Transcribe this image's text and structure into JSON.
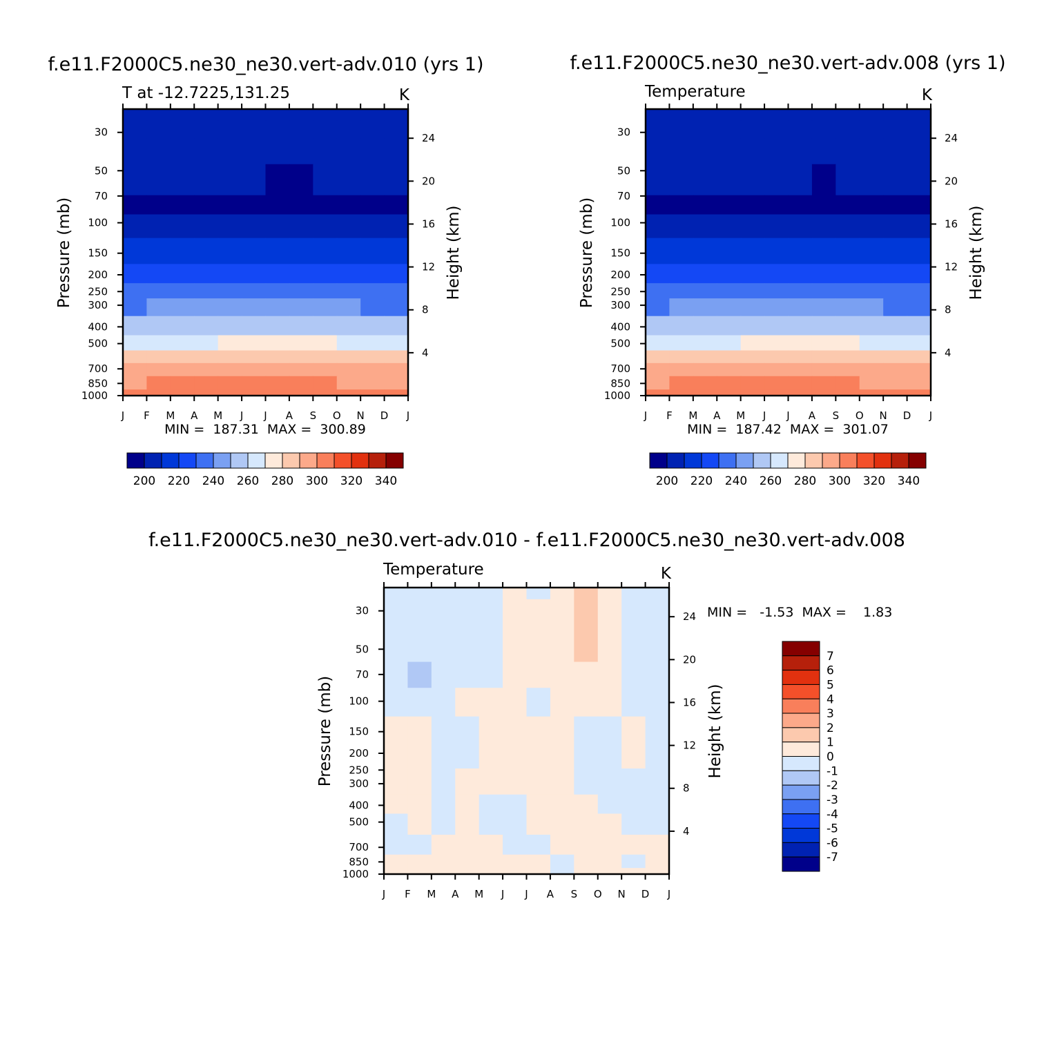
{
  "chart_data": [
    {
      "type": "heatmap",
      "title": "f.e11.F2000C5.ne30_ne30.vert-adv.010 (yrs 1)",
      "subtitle_left": "T at -12.7225,131.25",
      "units": "K",
      "xlabel": "",
      "ylabel": "Pressure (mb)",
      "ylabel_right": "Height (km)",
      "x_ticks": [
        "J",
        "F",
        "M",
        "A",
        "M",
        "J",
        "J",
        "A",
        "S",
        "O",
        "N",
        "D",
        "J"
      ],
      "y_ticks": [
        30,
        50,
        70,
        100,
        150,
        200,
        250,
        300,
        400,
        500,
        700,
        850,
        1000
      ],
      "y_ticks_right": [
        24,
        20,
        16,
        12,
        8,
        4
      ],
      "ylim": [
        1000,
        22
      ],
      "y_scale": "log",
      "x_months": [
        1,
        2,
        3,
        4,
        5,
        6,
        7,
        8,
        9,
        10,
        11,
        12
      ],
      "levels_p": [
        22,
        30,
        35,
        60,
        80,
        100,
        150,
        200,
        250,
        300,
        400,
        500,
        600,
        700,
        850,
        1000
      ],
      "values": [
        [
          190,
          190,
          190,
          190,
          190,
          190,
          190,
          190,
          190,
          190,
          190,
          190
        ],
        [
          192,
          193,
          193,
          192,
          191,
          190,
          190,
          190,
          190,
          191,
          192,
          192
        ],
        [
          196,
          197,
          197,
          195,
          193,
          192,
          191,
          191,
          192,
          194,
          196,
          196
        ],
        [
          192,
          193,
          193,
          193,
          192,
          191,
          189,
          189,
          190,
          191,
          192,
          192
        ],
        [
          188,
          188,
          188,
          188,
          188,
          188,
          188,
          188,
          188,
          188,
          188,
          188
        ],
        [
          193,
          192,
          192,
          193,
          193,
          194,
          194,
          194,
          193,
          193,
          192,
          193
        ],
        [
          206,
          206,
          206,
          207,
          207,
          208,
          208,
          208,
          207,
          207,
          206,
          206
        ],
        [
          216,
          216,
          216,
          217,
          217,
          218,
          218,
          218,
          217,
          216,
          215,
          216
        ],
        [
          224,
          225,
          225,
          226,
          226,
          227,
          227,
          227,
          226,
          225,
          224,
          224
        ],
        [
          229,
          230,
          230,
          231,
          231,
          232,
          232,
          232,
          231,
          230,
          229,
          229
        ],
        [
          246,
          247,
          247,
          248,
          248,
          249,
          249,
          249,
          248,
          247,
          246,
          246
        ],
        [
          258,
          259,
          259,
          259,
          260,
          260,
          260,
          261,
          260,
          259,
          259,
          258
        ],
        [
          270,
          271,
          271,
          271,
          272,
          272,
          272,
          273,
          272,
          271,
          271,
          270
        ],
        [
          281,
          282,
          282,
          283,
          283,
          284,
          284,
          284,
          283,
          282,
          282,
          281
        ],
        [
          289,
          290,
          290,
          291,
          291,
          292,
          292,
          291,
          290,
          289,
          289,
          289
        ],
        [
          296,
          297,
          297,
          298,
          298,
          299,
          299,
          298,
          297,
          296,
          296,
          296
        ]
      ],
      "min_label": "MIN =  187.31  MAX =  300.89",
      "colorbar": {
        "colors": [
          "#00008a",
          "#0022b2",
          "#0038d8",
          "#1448f5",
          "#3e70f2",
          "#7aa0f2",
          "#b0c8f5",
          "#d6e8fd",
          "#feeadb",
          "#fcc9ae",
          "#fca98a",
          "#f97f5b",
          "#f4502a",
          "#e2310f",
          "#b6200b",
          "#850000"
        ],
        "labels": [
          "200",
          "220",
          "240",
          "260",
          "280",
          "300",
          "320",
          "340"
        ],
        "levels": [
          190,
          200,
          210,
          220,
          230,
          240,
          250,
          260,
          270,
          280,
          290,
          300,
          310,
          320,
          330,
          340
        ]
      }
    },
    {
      "type": "heatmap",
      "title": "f.e11.F2000C5.ne30_ne30.vert-adv.008 (yrs 1)",
      "subtitle_left": "Temperature",
      "units": "K",
      "xlabel": "",
      "ylabel": "Pressure (mb)",
      "ylabel_right": "Height (km)",
      "x_ticks": [
        "J",
        "F",
        "M",
        "A",
        "M",
        "J",
        "J",
        "A",
        "S",
        "O",
        "N",
        "D",
        "J"
      ],
      "y_ticks": [
        30,
        50,
        70,
        100,
        150,
        200,
        250,
        300,
        400,
        500,
        700,
        850,
        1000
      ],
      "y_ticks_right": [
        24,
        20,
        16,
        12,
        8,
        4
      ],
      "ylim": [
        1000,
        22
      ],
      "y_scale": "log",
      "x_months": [
        1,
        2,
        3,
        4,
        5,
        6,
        7,
        8,
        9,
        10,
        11,
        12
      ],
      "levels_p": [
        22,
        30,
        35,
        60,
        80,
        100,
        150,
        200,
        250,
        300,
        400,
        500,
        600,
        700,
        850,
        1000
      ],
      "values": [
        [
          190,
          190,
          190,
          190,
          190,
          190,
          190,
          190,
          190,
          190,
          190,
          190
        ],
        [
          192,
          193,
          193,
          192,
          191,
          190,
          190,
          190,
          191,
          191,
          192,
          192
        ],
        [
          196,
          197,
          197,
          195,
          194,
          192,
          191,
          191,
          192,
          193,
          195,
          196
        ],
        [
          192,
          193,
          193,
          193,
          192,
          191,
          190,
          189,
          190,
          191,
          192,
          192
        ],
        [
          188,
          188,
          188,
          188,
          188,
          188,
          188,
          188,
          188,
          188,
          188,
          188
        ],
        [
          193,
          192,
          192,
          193,
          193,
          194,
          194,
          194,
          193,
          193,
          192,
          193
        ],
        [
          206,
          206,
          206,
          207,
          207,
          208,
          208,
          208,
          207,
          207,
          206,
          206
        ],
        [
          216,
          216,
          216,
          217,
          217,
          218,
          218,
          218,
          217,
          216,
          215,
          216
        ],
        [
          224,
          225,
          225,
          226,
          226,
          227,
          227,
          227,
          226,
          225,
          224,
          224
        ],
        [
          229,
          230,
          230,
          231,
          231,
          232,
          232,
          232,
          231,
          230,
          229,
          229
        ],
        [
          246,
          247,
          247,
          248,
          248,
          249,
          249,
          249,
          248,
          247,
          246,
          246
        ],
        [
          258,
          259,
          259,
          259,
          260,
          260,
          260,
          261,
          260,
          259,
          259,
          258
        ],
        [
          270,
          271,
          271,
          271,
          272,
          272,
          272,
          273,
          272,
          271,
          271,
          270
        ],
        [
          281,
          282,
          282,
          283,
          283,
          284,
          284,
          284,
          283,
          282,
          282,
          281
        ],
        [
          289,
          290,
          290,
          291,
          291,
          292,
          292,
          291,
          290,
          289,
          289,
          289
        ],
        [
          296,
          297,
          297,
          298,
          298,
          299,
          299,
          298,
          297,
          296,
          296,
          296
        ]
      ],
      "min_label": "MIN =  187.42  MAX =  301.07",
      "colorbar": {
        "colors": [
          "#00008a",
          "#0022b2",
          "#0038d8",
          "#1448f5",
          "#3e70f2",
          "#7aa0f2",
          "#b0c8f5",
          "#d6e8fd",
          "#feeadb",
          "#fcc9ae",
          "#fca98a",
          "#f97f5b",
          "#f4502a",
          "#e2310f",
          "#b6200b",
          "#850000"
        ],
        "labels": [
          "200",
          "220",
          "240",
          "260",
          "280",
          "300",
          "320",
          "340"
        ],
        "levels": [
          190,
          200,
          210,
          220,
          230,
          240,
          250,
          260,
          270,
          280,
          290,
          300,
          310,
          320,
          330,
          340
        ]
      }
    },
    {
      "type": "heatmap",
      "title": "f.e11.F2000C5.ne30_ne30.vert-adv.010 - f.e11.F2000C5.ne30_ne30.vert-adv.008",
      "subtitle_left": "Temperature",
      "units": "K",
      "xlabel": "",
      "ylabel": "Pressure (mb)",
      "ylabel_right": "Height (km)",
      "x_ticks": [
        "J",
        "F",
        "M",
        "A",
        "M",
        "J",
        "J",
        "A",
        "S",
        "O",
        "N",
        "D",
        "J"
      ],
      "y_ticks": [
        30,
        50,
        70,
        100,
        150,
        200,
        250,
        300,
        400,
        500,
        700,
        850,
        1000
      ],
      "y_ticks_right": [
        24,
        20,
        16,
        12,
        8,
        4
      ],
      "ylim": [
        1000,
        22
      ],
      "y_scale": "log",
      "x_months": [
        1,
        2,
        3,
        4,
        5,
        6,
        7,
        8,
        9,
        10,
        11,
        12
      ],
      "levels_p": [
        22,
        30,
        50,
        70,
        100,
        150,
        200,
        300,
        400,
        500,
        700,
        850,
        1000
      ],
      "values": [
        [
          -0.3,
          -0.3,
          -0.3,
          -0.2,
          -0.1,
          0.3,
          -0.2,
          0.5,
          1.2,
          0.3,
          -0.4,
          -0.2
        ],
        [
          -0.3,
          -0.3,
          -0.3,
          -0.2,
          -0.1,
          0.3,
          0.2,
          0.6,
          1.3,
          0.3,
          -0.7,
          -0.2
        ],
        [
          -0.3,
          -0.4,
          -0.3,
          -0.2,
          -0.1,
          0.2,
          0.3,
          0.5,
          1.1,
          0.2,
          -0.5,
          -0.1
        ],
        [
          -0.3,
          -1.2,
          -0.3,
          -0.2,
          -0.1,
          0.1,
          0.8,
          0.4,
          0.7,
          0.1,
          -0.3,
          -0.1
        ],
        [
          -0.2,
          -0.3,
          -0.2,
          0.4,
          0.6,
          0.3,
          -0.4,
          0.2,
          0.3,
          0.1,
          -0.1,
          -0.2
        ],
        [
          0.2,
          0.3,
          -0.2,
          -0.2,
          0.3,
          0.3,
          0.2,
          0.2,
          -0.2,
          -0.3,
          0.2,
          -0.1
        ],
        [
          0.3,
          0.3,
          -0.2,
          -0.2,
          0.3,
          0.4,
          0.3,
          0.1,
          -0.2,
          -0.3,
          0.2,
          -0.2
        ],
        [
          0.3,
          0.3,
          -0.2,
          0.2,
          0.3,
          0.3,
          0.3,
          0.2,
          -0.2,
          -0.3,
          -0.1,
          -0.2
        ],
        [
          0.3,
          0.3,
          -0.2,
          0.3,
          -0.1,
          -0.2,
          0.2,
          0.3,
          0.2,
          -0.2,
          -0.2,
          -0.2
        ],
        [
          -0.2,
          0.3,
          -0.2,
          0.3,
          -0.2,
          -0.2,
          0.3,
          0.3,
          0.3,
          0.3,
          -0.1,
          -0.2
        ],
        [
          -0.2,
          -0.2,
          0.3,
          0.3,
          0.3,
          -0.2,
          -0.2,
          0.3,
          0.3,
          0.6,
          0.3,
          0.3
        ],
        [
          0.3,
          0.3,
          0.3,
          0.3,
          0.3,
          0.3,
          0.2,
          -0.2,
          0.3,
          0.3,
          -0.2,
          0.3
        ],
        [
          0.3,
          0.1,
          0.2,
          0.3,
          0.3,
          0.3,
          0.2,
          -0.2,
          0.3,
          0.3,
          0.3,
          0.3
        ]
      ],
      "min_label": "MIN =   -1.53  MAX =    1.83",
      "colorbar": {
        "colors": [
          "#00008a",
          "#0022b2",
          "#0038d8",
          "#1448f5",
          "#3e70f2",
          "#7aa0f2",
          "#b0c8f5",
          "#d6e8fd",
          "#feeadb",
          "#fcc9ae",
          "#fca98a",
          "#f97f5b",
          "#f4502a",
          "#e2310f",
          "#b6200b",
          "#850000"
        ],
        "labels": [
          "7",
          "6",
          "5",
          "4",
          "3",
          "2",
          "1",
          "0",
          "-1",
          "-2",
          "-3",
          "-4",
          "-5",
          "-6",
          "-7"
        ],
        "levels": [
          -7,
          -6,
          -5,
          -4,
          -3,
          -2,
          -1,
          0,
          1,
          2,
          3,
          4,
          5,
          6,
          7
        ]
      }
    }
  ]
}
